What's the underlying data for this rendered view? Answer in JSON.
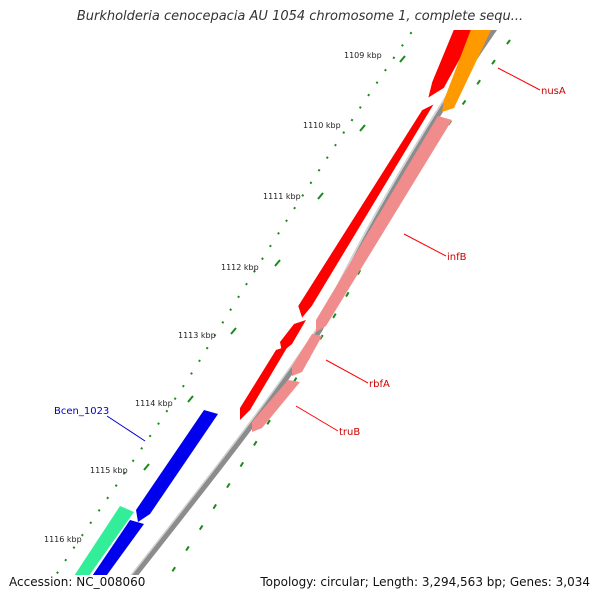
{
  "title": "Burkholderia cenocepacia AU 1054 chromosome 1, complete sequ...",
  "footer": {
    "accession": "Accession: NC_008060",
    "summary": "Topology: circular; Length: 3,294,563 bp; Genes: 3,034"
  },
  "colors": {
    "backbone": "#8c8c8c",
    "fwd_cds_red": "#ff0000",
    "rev_cds_pink": "#f08c8c",
    "blue_cds": "#0000ee",
    "mint_cds": "#33ee99",
    "orange_cds": "#ff9900",
    "tick_green": "#1a8a1a",
    "label_red": "#cc0000",
    "label_blue": "#0000cc"
  },
  "axis": {
    "ticks": [
      "1109 kbp",
      "1110 kbp",
      "1111 kbp",
      "1112 kbp",
      "1113 kbp",
      "1114 kbp",
      "1115 kbp",
      "1116 kbp"
    ]
  },
  "labels": {
    "nusA": "nusA",
    "infB": "infB",
    "rbfA": "rbfA",
    "truB": "truB",
    "bcen1023": "Bcen_1023"
  }
}
